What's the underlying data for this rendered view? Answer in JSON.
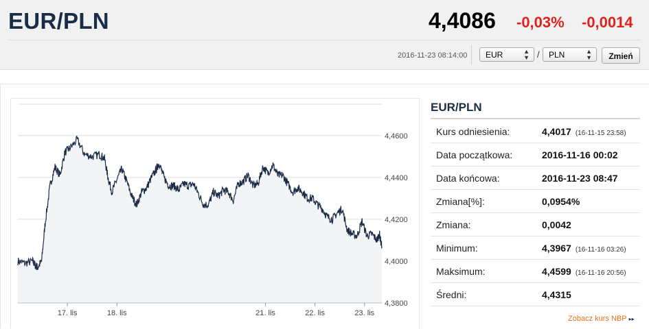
{
  "header": {
    "pair": "EUR/PLN",
    "rate": "4,4086",
    "change_pct": "-0,03%",
    "change_abs": "-0,0014",
    "timestamp": "2016-11-23 08:14:00",
    "from_currency": "EUR",
    "to_currency": "PLN",
    "separator": "/",
    "change_button": "Zmień",
    "colors": {
      "negative": "#e0211d",
      "title": "#1c2c46"
    }
  },
  "stats": {
    "title": "EUR/PLN",
    "rows": [
      {
        "label": "Kurs odniesienia:",
        "value": "4,4017",
        "note": "(16-11-15 23:58)"
      },
      {
        "label": "Data początkowa:",
        "value": "2016-11-16 00:02",
        "note": ""
      },
      {
        "label": "Data końcowa:",
        "value": "2016-11-23 08:47",
        "note": ""
      },
      {
        "label": "Zmiana[%]:",
        "value": "0,0954%",
        "note": ""
      },
      {
        "label": "Zmiana:",
        "value": "0,0042",
        "note": ""
      },
      {
        "label": "Minimum:",
        "value": "4,3967",
        "note": "(16-11-16 03:26)"
      },
      {
        "label": "Maksimum:",
        "value": "4,4599",
        "note": "(16-11-16 20:56)"
      },
      {
        "label": "Średni:",
        "value": "4,4315",
        "note": ""
      }
    ],
    "nbp_link": "Zobacz kurs NBP",
    "nbp_arrow": "▸▸",
    "link_color": "#e8711b"
  },
  "chart_data": {
    "type": "area",
    "title": "",
    "xlabel": "",
    "ylabel": "",
    "ylim": [
      4.38,
      4.475
    ],
    "xlim": [
      16.0,
      23.35
    ],
    "y_ticks": [
      4.38,
      4.4,
      4.42,
      4.44,
      4.46
    ],
    "y_tick_labels": [
      "4,3800",
      "4,4000",
      "4,4200",
      "4,4400",
      "4,4600"
    ],
    "x_ticks": [
      17,
      18,
      21,
      22,
      23
    ],
    "x_tick_labels": [
      "17. lis",
      "18. lis",
      "21. lis",
      "22. lis",
      "23. lis"
    ],
    "grid": true,
    "line_color": "#1c2c46",
    "fill_color": "#f3f4f6",
    "series": [
      {
        "x": [
          16.0,
          16.15,
          16.3,
          16.35,
          16.4,
          16.48,
          16.55,
          16.65,
          16.75,
          16.85,
          16.95,
          17.05,
          17.2,
          17.35,
          17.5,
          17.65,
          17.75,
          17.82,
          17.9,
          18.0,
          18.1,
          18.2,
          18.3,
          18.4,
          18.5,
          18.6,
          18.7,
          18.8,
          18.85,
          18.95,
          19.05,
          19.15,
          19.25,
          19.35,
          19.45,
          19.55,
          19.65,
          19.75,
          19.85,
          19.95,
          20.05,
          20.15,
          20.25,
          20.35,
          20.45,
          20.55,
          20.65,
          20.75,
          20.85,
          20.95,
          21.05,
          21.15,
          21.25,
          21.35,
          21.45,
          21.55,
          21.65,
          21.75,
          21.85,
          21.95,
          22.05,
          22.15,
          22.25,
          22.35,
          22.45,
          22.55,
          22.65,
          22.75,
          22.85,
          22.95,
          23.05,
          23.15,
          23.25,
          23.3,
          23.35
        ],
        "y": [
          4.4,
          4.399,
          4.4,
          4.398,
          4.397,
          4.4,
          4.418,
          4.436,
          4.445,
          4.441,
          4.452,
          4.454,
          4.458,
          4.451,
          4.45,
          4.451,
          4.449,
          4.44,
          4.433,
          4.439,
          4.444,
          4.438,
          4.431,
          4.427,
          4.433,
          4.435,
          4.44,
          4.444,
          4.447,
          4.44,
          4.436,
          4.436,
          4.434,
          4.437,
          4.436,
          4.437,
          4.432,
          4.427,
          4.427,
          4.433,
          4.431,
          4.434,
          4.433,
          4.429,
          4.437,
          4.438,
          4.441,
          4.436,
          4.437,
          4.445,
          4.442,
          4.446,
          4.441,
          4.441,
          4.437,
          4.433,
          4.435,
          4.433,
          4.43,
          4.43,
          4.427,
          4.425,
          4.421,
          4.42,
          4.423,
          4.425,
          4.415,
          4.413,
          4.412,
          4.419,
          4.412,
          4.413,
          4.41,
          4.413,
          4.407
        ]
      }
    ]
  }
}
